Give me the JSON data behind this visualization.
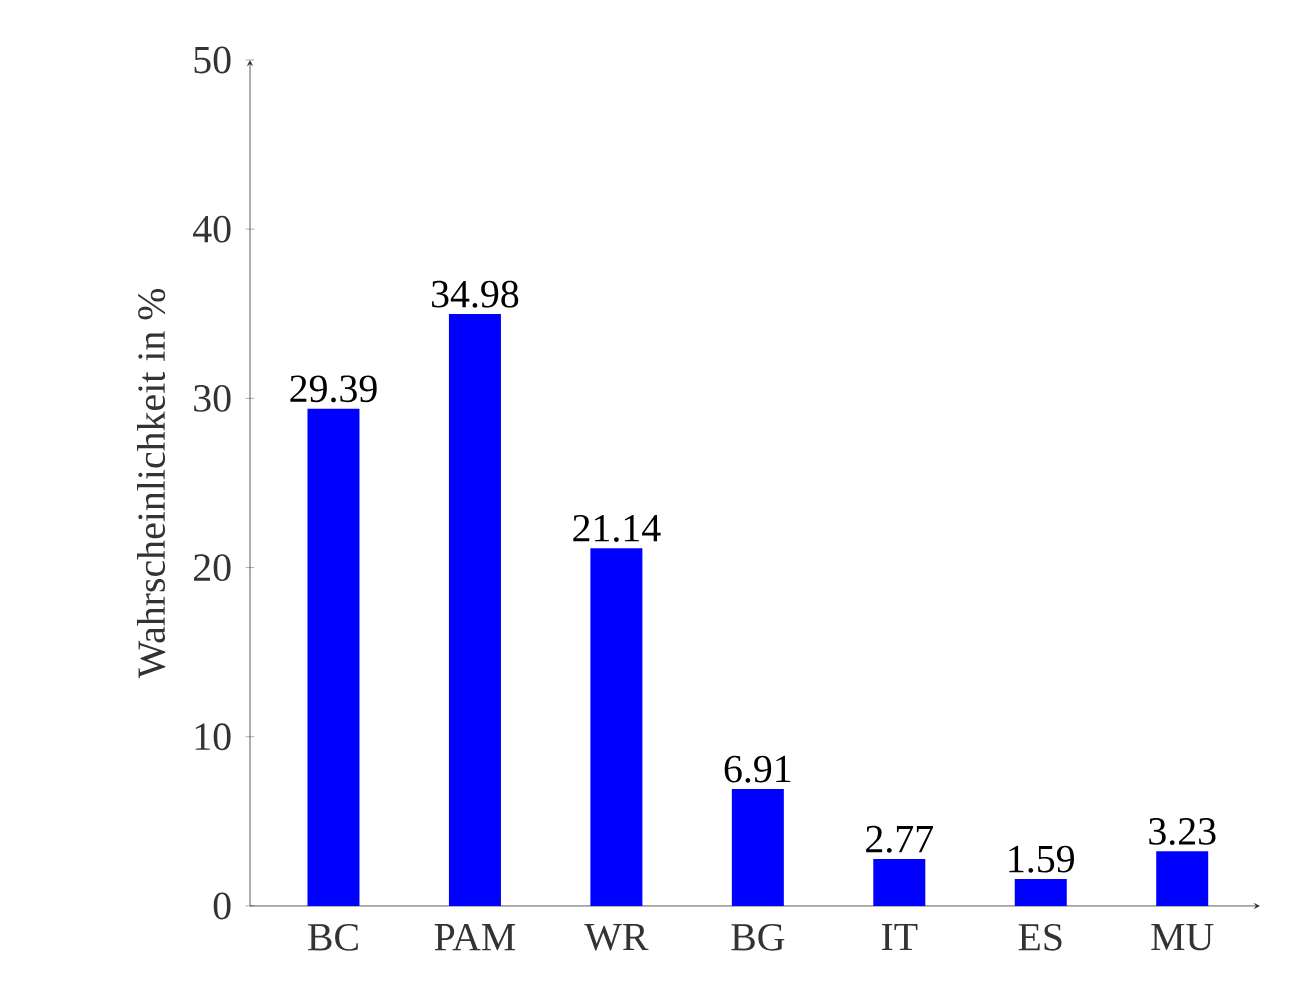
{
  "chart_data": {
    "type": "bar",
    "ylabel": "Wahrscheinlichkeit in %",
    "categories": [
      "BC",
      "PAM",
      "WR",
      "BG",
      "IT",
      "ES",
      "MU"
    ],
    "values": [
      29.39,
      34.98,
      21.14,
      6.91,
      2.77,
      1.59,
      3.23
    ],
    "color": "#0000ff",
    "ylim": [
      0,
      50
    ],
    "yticks": [
      0,
      10,
      20,
      30,
      40,
      50
    ],
    "data_labels": true
  }
}
